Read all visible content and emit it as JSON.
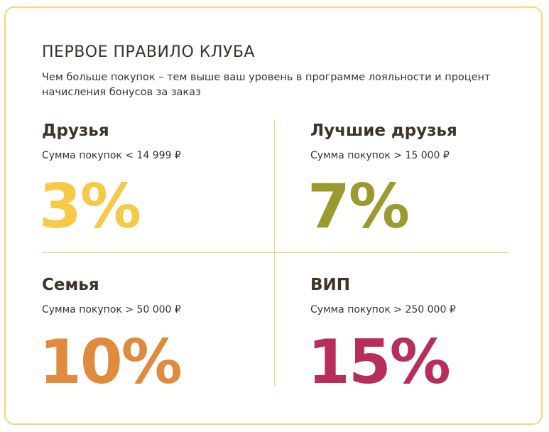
{
  "header": {
    "title": "ПЕРВОЕ ПРАВИЛО КЛУБА",
    "subtitle": "Чем больше покупок – тем выше ваш уровень в программе лояльности и процент начисления бонусов за заказ"
  },
  "tiers": [
    {
      "name": "Друзья",
      "condition": "Сумма покупок < 14 999 ₽",
      "percent": "3%",
      "color": "#f7c948"
    },
    {
      "name": "Лучшие друзья",
      "condition": "Сумма покупок > 15 000 ₽",
      "percent": "7%",
      "color": "#9b9a2e"
    },
    {
      "name": "Семья",
      "condition": "Сумма покупок > 50 000 ₽",
      "percent": "10%",
      "color": "#df8a3c"
    },
    {
      "name": "ВИП",
      "condition": "Сумма покупок > 250 000 ₽",
      "percent": "15%",
      "color": "#b82e5b"
    }
  ]
}
